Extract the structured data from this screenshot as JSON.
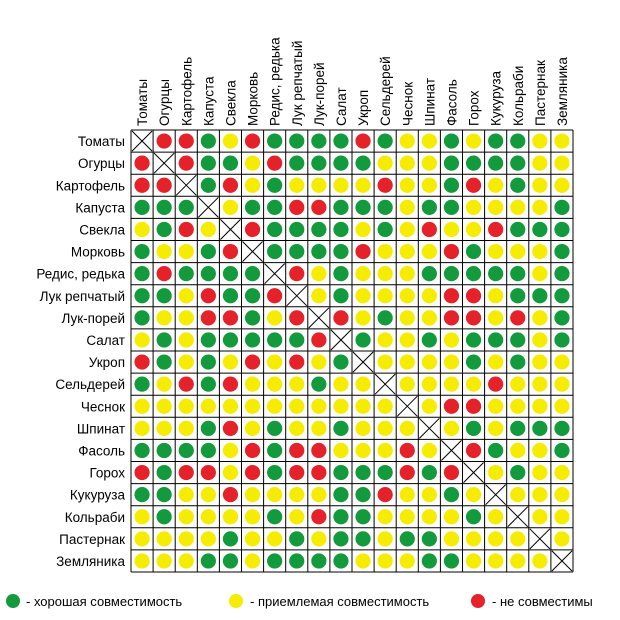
{
  "plants": [
    "Томаты",
    "Огурцы",
    "Картофель",
    "Капуста",
    "Свекла",
    "Морковь",
    "Редис, редька",
    "Лук репчатый",
    "Лук-порей",
    "Салат",
    "Укроп",
    "Сельдерей",
    "Чеснок",
    "Шпинат",
    "Фасоль",
    "Горох",
    "Кукуруза",
    "Кольраби",
    "Пастернак",
    "Земляника"
  ],
  "colors": {
    "good": "#129a3c",
    "ok": "#f5ec00",
    "bad": "#e5212a",
    "grid": "#000000"
  },
  "matrix": [
    "XRRGYRGGGGRGYYGYGGYY",
    "RXRGGYRGGGGYYYGGGGYY",
    "RRXGRYGYYYYRYYGRYGYY",
    "GGGXYGGRRGGGYGGYYYYG",
    "YGRYXRGGGGYGYRYYRGGG",
    "GYYGRXGGGGRYYYRGYYYG",
    "GRGGGGXRYGYYYGGGGGYG",
    "GGYRGGRXYGYYYYRRYGGG",
    "GYYRRGYRXRYGYYRRYRYG",
    "YGYGGGGGRXGYYGYGGGYG",
    "RGYGYRYRYGXYYYYGYGYY",
    "GYRGRYYYGYYXYYYYRYYY",
    "YYYYYYYYYYYYXYRRYYYY",
    "YYYGRYGYYGYYYXYGYGGG",
    "GGGGYRGRRYYYRYXRGYYG",
    "RGRRYRGRRGGGRGRXYGYY",
    "GGYYRYYYYGGRYYGYXYYY",
    "YGYYYYGYRGGYYYYGYXYY",
    "YYYYGYYGYGGYGGYYYYXY",
    "YYYGGYGGGGYYYGGYYYYX"
  ],
  "legend": {
    "good": "- хорошая совместимость",
    "ok": "- приемлемая совместимость",
    "bad": "- не совместимы"
  }
}
